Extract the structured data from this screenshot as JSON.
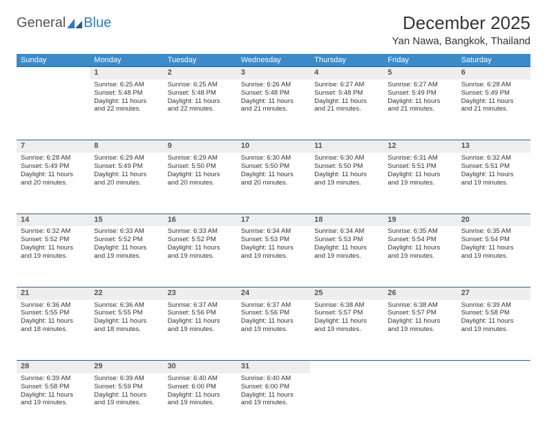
{
  "branding": {
    "word1": "General",
    "word2": "Blue",
    "word1_color": "#555555",
    "word2_color": "#2b7bbf"
  },
  "title": "December 2025",
  "location": "Yan Nawa, Bangkok, Thailand",
  "colors": {
    "header_bg": "#3b8bc9",
    "header_fg": "#ffffff",
    "daynum_bg": "#eeeeee",
    "daynum_border": "#2b5f8f",
    "text": "#333333"
  },
  "type": "calendar",
  "columns": [
    "Sunday",
    "Monday",
    "Tuesday",
    "Wednesday",
    "Thursday",
    "Friday",
    "Saturday"
  ],
  "weeks": [
    {
      "nums": [
        "",
        "1",
        "2",
        "3",
        "4",
        "5",
        "6"
      ],
      "cells": [
        {
          "empty": true
        },
        {
          "sunrise": "6:25 AM",
          "sunset": "5:48 PM",
          "daylight": "11 hours and 22 minutes."
        },
        {
          "sunrise": "6:25 AM",
          "sunset": "5:48 PM",
          "daylight": "11 hours and 22 minutes."
        },
        {
          "sunrise": "6:26 AM",
          "sunset": "5:48 PM",
          "daylight": "11 hours and 21 minutes."
        },
        {
          "sunrise": "6:27 AM",
          "sunset": "5:48 PM",
          "daylight": "11 hours and 21 minutes."
        },
        {
          "sunrise": "6:27 AM",
          "sunset": "5:49 PM",
          "daylight": "11 hours and 21 minutes."
        },
        {
          "sunrise": "6:28 AM",
          "sunset": "5:49 PM",
          "daylight": "11 hours and 21 minutes."
        }
      ]
    },
    {
      "nums": [
        "7",
        "8",
        "9",
        "10",
        "11",
        "12",
        "13"
      ],
      "cells": [
        {
          "sunrise": "6:28 AM",
          "sunset": "5:49 PM",
          "daylight": "11 hours and 20 minutes."
        },
        {
          "sunrise": "6:29 AM",
          "sunset": "5:49 PM",
          "daylight": "11 hours and 20 minutes."
        },
        {
          "sunrise": "6:29 AM",
          "sunset": "5:50 PM",
          "daylight": "11 hours and 20 minutes."
        },
        {
          "sunrise": "6:30 AM",
          "sunset": "5:50 PM",
          "daylight": "11 hours and 20 minutes."
        },
        {
          "sunrise": "6:30 AM",
          "sunset": "5:50 PM",
          "daylight": "11 hours and 19 minutes."
        },
        {
          "sunrise": "6:31 AM",
          "sunset": "5:51 PM",
          "daylight": "11 hours and 19 minutes."
        },
        {
          "sunrise": "6:32 AM",
          "sunset": "5:51 PM",
          "daylight": "11 hours and 19 minutes."
        }
      ]
    },
    {
      "nums": [
        "14",
        "15",
        "16",
        "17",
        "18",
        "19",
        "20"
      ],
      "cells": [
        {
          "sunrise": "6:32 AM",
          "sunset": "5:52 PM",
          "daylight": "11 hours and 19 minutes."
        },
        {
          "sunrise": "6:33 AM",
          "sunset": "5:52 PM",
          "daylight": "11 hours and 19 minutes."
        },
        {
          "sunrise": "6:33 AM",
          "sunset": "5:52 PM",
          "daylight": "11 hours and 19 minutes."
        },
        {
          "sunrise": "6:34 AM",
          "sunset": "5:53 PM",
          "daylight": "11 hours and 19 minutes."
        },
        {
          "sunrise": "6:34 AM",
          "sunset": "5:53 PM",
          "daylight": "11 hours and 19 minutes."
        },
        {
          "sunrise": "6:35 AM",
          "sunset": "5:54 PM",
          "daylight": "11 hours and 19 minutes."
        },
        {
          "sunrise": "6:35 AM",
          "sunset": "5:54 PM",
          "daylight": "11 hours and 19 minutes."
        }
      ]
    },
    {
      "nums": [
        "21",
        "22",
        "23",
        "24",
        "25",
        "26",
        "27"
      ],
      "cells": [
        {
          "sunrise": "6:36 AM",
          "sunset": "5:55 PM",
          "daylight": "11 hours and 18 minutes."
        },
        {
          "sunrise": "6:36 AM",
          "sunset": "5:55 PM",
          "daylight": "11 hours and 18 minutes."
        },
        {
          "sunrise": "6:37 AM",
          "sunset": "5:56 PM",
          "daylight": "11 hours and 19 minutes."
        },
        {
          "sunrise": "6:37 AM",
          "sunset": "5:56 PM",
          "daylight": "11 hours and 19 minutes."
        },
        {
          "sunrise": "6:38 AM",
          "sunset": "5:57 PM",
          "daylight": "11 hours and 19 minutes."
        },
        {
          "sunrise": "6:38 AM",
          "sunset": "5:57 PM",
          "daylight": "11 hours and 19 minutes."
        },
        {
          "sunrise": "6:39 AM",
          "sunset": "5:58 PM",
          "daylight": "11 hours and 19 minutes."
        }
      ]
    },
    {
      "nums": [
        "28",
        "29",
        "30",
        "31",
        "",
        "",
        ""
      ],
      "cells": [
        {
          "sunrise": "6:39 AM",
          "sunset": "5:58 PM",
          "daylight": "11 hours and 19 minutes."
        },
        {
          "sunrise": "6:39 AM",
          "sunset": "5:59 PM",
          "daylight": "11 hours and 19 minutes."
        },
        {
          "sunrise": "6:40 AM",
          "sunset": "6:00 PM",
          "daylight": "11 hours and 19 minutes."
        },
        {
          "sunrise": "6:40 AM",
          "sunset": "6:00 PM",
          "daylight": "11 hours and 19 minutes."
        },
        {
          "empty": true
        },
        {
          "empty": true
        },
        {
          "empty": true
        }
      ]
    }
  ],
  "labels": {
    "sunrise": "Sunrise:",
    "sunset": "Sunset:",
    "daylight": "Daylight:"
  }
}
